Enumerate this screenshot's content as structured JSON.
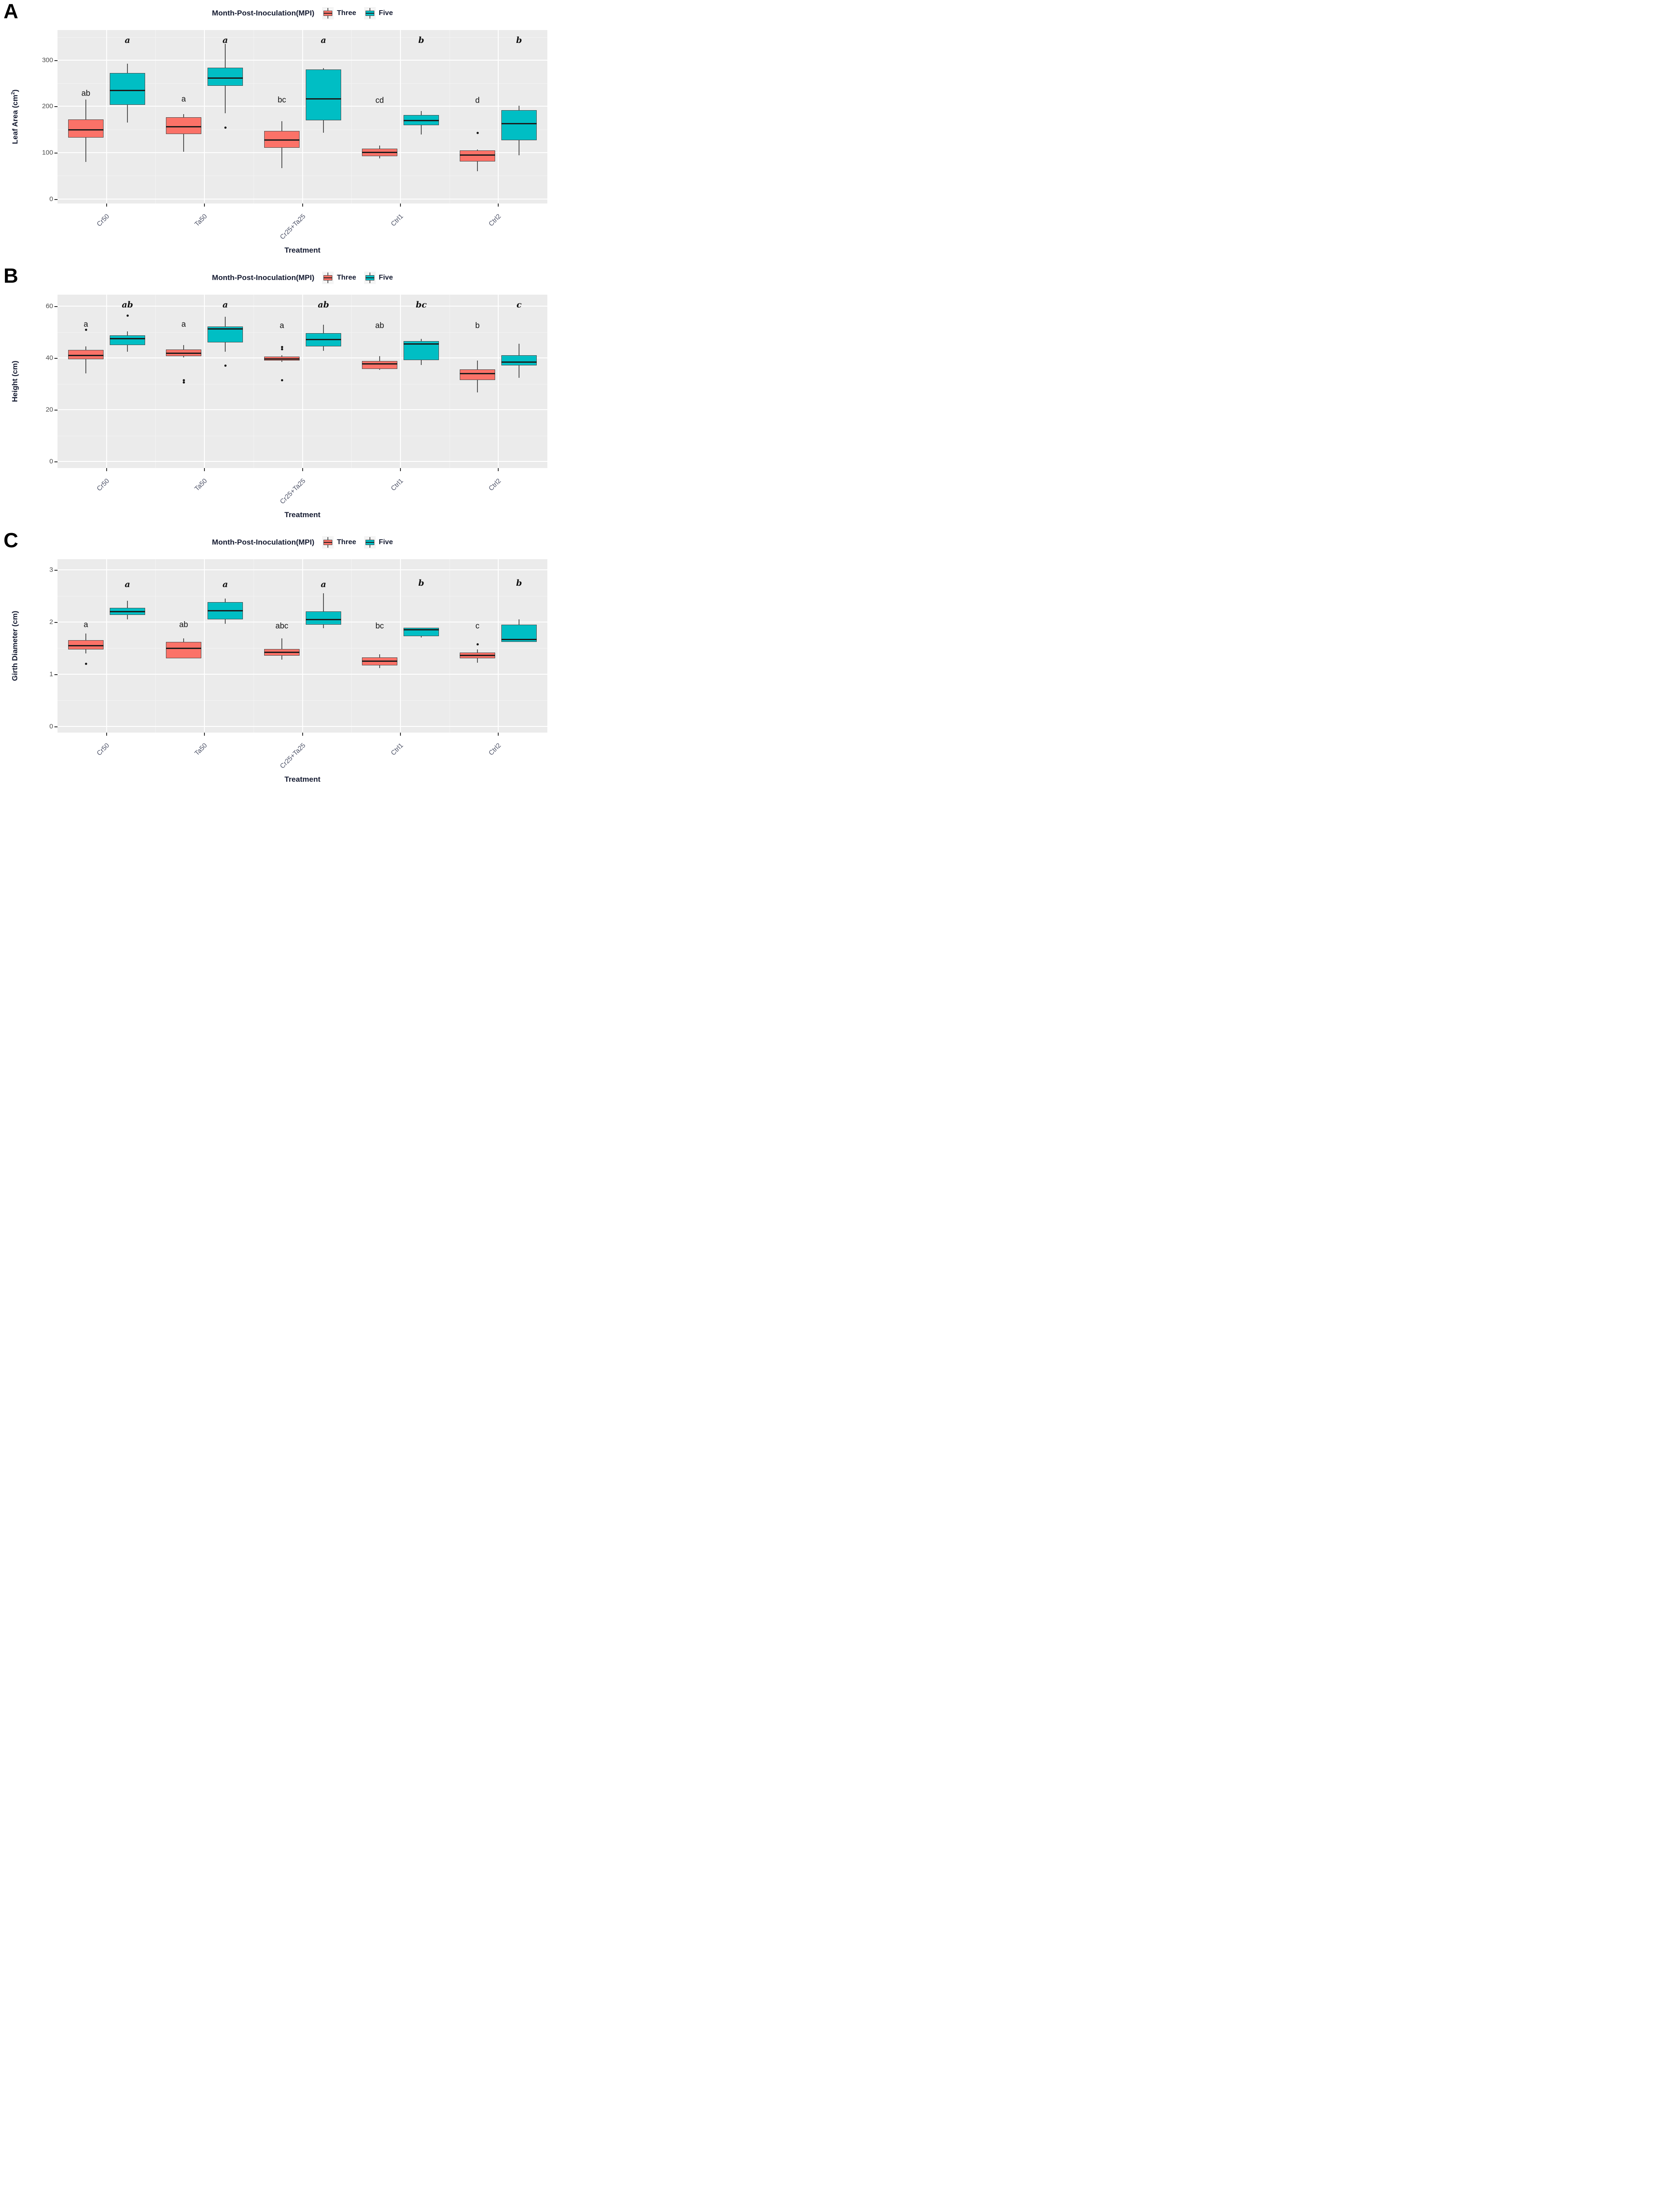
{
  "figure": {
    "panel_letters": [
      "A",
      "B",
      "C"
    ],
    "colors": {
      "three_fill": "#FB7268",
      "five_fill": "#00BEC4",
      "panel_background": "#EBEBEB",
      "grid_major": "#FFFFFF",
      "grid_minor": "#F4F4F4",
      "box_border": "#4A4A4A",
      "median_line": "#1C1C1C",
      "bold_text": "#141A30",
      "tick_label": "#4E4E4E",
      "x_category_label": "#4C5166"
    }
  },
  "chart_data": [
    {
      "type": "boxplot",
      "panel_label": "A",
      "title": "Month-Post-Inoculation(MPI)",
      "xlabel": "Treatment",
      "ylabel_pre": "Leaf Area (cm",
      "ylabel_sup": "2",
      "ylabel_post": ")",
      "categories": [
        "Cr50",
        "Ta50",
        "Cr25+Ta25",
        "Ctrl1",
        "Ctrl2"
      ],
      "ylim": [
        -10,
        365
      ],
      "yticks": [
        0,
        100,
        200,
        300
      ],
      "ytick_labels": [
        "0",
        "100",
        "200",
        "300"
      ],
      "yminor": [
        50,
        150,
        250,
        350
      ],
      "grid": true,
      "legend_position": "top",
      "series": [
        {
          "name": "Three",
          "color": "#FB7268",
          "letter_style": "normal",
          "boxes": [
            {
              "lo": 80,
              "q1": 133,
              "med": 150,
              "q3": 172,
              "hi": 215,
              "outliers": [],
              "letter": "ab",
              "letter_y": 228
            },
            {
              "lo": 102,
              "q1": 140,
              "med": 156,
              "q3": 177,
              "hi": 183,
              "outliers": [],
              "letter": "a",
              "letter_y": 216
            },
            {
              "lo": 67,
              "q1": 111,
              "med": 128,
              "q3": 147,
              "hi": 168,
              "outliers": [],
              "letter": "bc",
              "letter_y": 214
            },
            {
              "lo": 88,
              "q1": 92,
              "med": 101,
              "q3": 109,
              "hi": 115,
              "outliers": [],
              "letter": "cd",
              "letter_y": 213
            },
            {
              "lo": 60,
              "q1": 81,
              "med": 95,
              "q3": 105,
              "hi": 107,
              "outliers": [
                143
              ],
              "letter": "d",
              "letter_y": 213
            }
          ]
        },
        {
          "name": "Five",
          "color": "#00BEC4",
          "letter_style": "italic",
          "boxes": [
            {
              "lo": 165,
              "q1": 203,
              "med": 235,
              "q3": 272,
              "hi": 292,
              "outliers": [],
              "letter": "a",
              "letter_y": 343
            },
            {
              "lo": 185,
              "q1": 244,
              "med": 262,
              "q3": 284,
              "hi": 335,
              "outliers": [
                155
              ],
              "letter": "a",
              "letter_y": 343
            },
            {
              "lo": 143,
              "q1": 170,
              "med": 217,
              "q3": 280,
              "hi": 283,
              "outliers": [],
              "letter": "a",
              "letter_y": 343
            },
            {
              "lo": 139,
              "q1": 159,
              "med": 170,
              "q3": 181,
              "hi": 190,
              "outliers": [],
              "letter": "b",
              "letter_y": 343
            },
            {
              "lo": 94,
              "q1": 127,
              "med": 163,
              "q3": 192,
              "hi": 201,
              "outliers": [],
              "letter": "b",
              "letter_y": 343
            }
          ]
        }
      ]
    },
    {
      "type": "boxplot",
      "panel_label": "B",
      "title": "Month-Post-Inoculation(MPI)",
      "xlabel": "Treatment",
      "ylabel_pre": "Height (cm)",
      "ylabel_sup": "",
      "ylabel_post": "",
      "categories": [
        "Cr50",
        "Ta50",
        "Cr25+Ta25",
        "Ctrl1",
        "Ctrl2"
      ],
      "ylim": [
        -2.5,
        64.5
      ],
      "yticks": [
        0,
        20,
        40,
        60
      ],
      "ytick_labels": [
        "0",
        "20",
        "40",
        "60"
      ],
      "yminor": [
        10,
        30,
        50
      ],
      "grid": true,
      "legend_position": "top",
      "series": [
        {
          "name": "Three",
          "color": "#FB7268",
          "letter_style": "normal",
          "boxes": [
            {
              "lo": 34,
              "q1": 39.5,
              "med": 41,
              "q3": 43.2,
              "hi": 44.5,
              "outliers": [
                51
              ],
              "letter": "a",
              "letter_y": 53
            },
            {
              "lo": 40.2,
              "q1": 40.8,
              "med": 42,
              "q3": 43.3,
              "hi": 45,
              "outliers": [
                31.5,
                30.7
              ],
              "letter": "a",
              "letter_y": 53
            },
            {
              "lo": 38.5,
              "q1": 39,
              "med": 39.7,
              "q3": 40.6,
              "hi": 41,
              "outliers": [
                44.3,
                43.5,
                31.5
              ],
              "letter": "a",
              "letter_y": 52.5
            },
            {
              "lo": 35.4,
              "q1": 35.8,
              "med": 37.8,
              "q3": 38.8,
              "hi": 40.8,
              "outliers": [],
              "letter": "ab",
              "letter_y": 52.5
            },
            {
              "lo": 26.8,
              "q1": 31.5,
              "med": 34,
              "q3": 35.6,
              "hi": 39,
              "outliers": [],
              "letter": "b",
              "letter_y": 52.5
            }
          ]
        },
        {
          "name": "Five",
          "color": "#00BEC4",
          "letter_style": "italic",
          "boxes": [
            {
              "lo": 42.5,
              "q1": 45,
              "med": 47.5,
              "q3": 48.8,
              "hi": 50.3,
              "outliers": [
                56.5
              ],
              "letter": "ab",
              "letter_y": 60.5
            },
            {
              "lo": 42.5,
              "q1": 46,
              "med": 51.3,
              "q3": 52.2,
              "hi": 56,
              "outliers": [
                37.2
              ],
              "letter": "a",
              "letter_y": 60.5
            },
            {
              "lo": 42.8,
              "q1": 44.5,
              "med": 47.3,
              "q3": 49.6,
              "hi": 52.8,
              "outliers": [],
              "letter": "ab",
              "letter_y": 60.5
            },
            {
              "lo": 37.4,
              "q1": 39.2,
              "med": 45.6,
              "q3": 46.6,
              "hi": 47.4,
              "outliers": [],
              "letter": "bc",
              "letter_y": 60.5
            },
            {
              "lo": 32.3,
              "q1": 37.2,
              "med": 38.5,
              "q3": 41,
              "hi": 45.5,
              "outliers": [],
              "letter": "c",
              "letter_y": 60.5
            }
          ]
        }
      ]
    },
    {
      "type": "boxplot",
      "panel_label": "C",
      "title": "Month-Post-Inoculation(MPI)",
      "xlabel": "Treatment",
      "ylabel_pre": "Girth Diameter (cm)",
      "ylabel_sup": "",
      "ylabel_post": "",
      "categories": [
        "Cr50",
        "Ta50",
        "Cr25+Ta25",
        "Ctrl1",
        "Ctrl2"
      ],
      "ylim": [
        -0.12,
        3.2
      ],
      "yticks": [
        0,
        1,
        2,
        3
      ],
      "ytick_labels": [
        "0",
        "1",
        "2",
        "3"
      ],
      "yminor": [
        0.5,
        1.5,
        2.5
      ],
      "grid": true,
      "legend_position": "top",
      "series": [
        {
          "name": "Three",
          "color": "#FB7268",
          "letter_style": "normal",
          "boxes": [
            {
              "lo": 1.4,
              "q1": 1.47,
              "med": 1.55,
              "q3": 1.65,
              "hi": 1.78,
              "outliers": [
                1.2
              ],
              "letter": "a",
              "letter_y": 1.95
            },
            {
              "lo": 1.3,
              "q1": 1.3,
              "med": 1.5,
              "q3": 1.62,
              "hi": 1.68,
              "outliers": [],
              "letter": "ab",
              "letter_y": 1.95
            },
            {
              "lo": 1.28,
              "q1": 1.35,
              "med": 1.42,
              "q3": 1.48,
              "hi": 1.68,
              "outliers": [],
              "letter": "abc",
              "letter_y": 1.92
            },
            {
              "lo": 1.12,
              "q1": 1.17,
              "med": 1.25,
              "q3": 1.32,
              "hi": 1.38,
              "outliers": [],
              "letter": "bc",
              "letter_y": 1.92
            },
            {
              "lo": 1.22,
              "q1": 1.3,
              "med": 1.36,
              "q3": 1.41,
              "hi": 1.47,
              "outliers": [
                1.57
              ],
              "letter": "c",
              "letter_y": 1.92
            }
          ]
        },
        {
          "name": "Five",
          "color": "#00BEC4",
          "letter_style": "italic",
          "boxes": [
            {
              "lo": 2.05,
              "q1": 2.13,
              "med": 2.2,
              "q3": 2.27,
              "hi": 2.4,
              "outliers": [],
              "letter": "a",
              "letter_y": 2.72
            },
            {
              "lo": 1.96,
              "q1": 2.05,
              "med": 2.22,
              "q3": 2.38,
              "hi": 2.45,
              "outliers": [],
              "letter": "a",
              "letter_y": 2.72
            },
            {
              "lo": 1.88,
              "q1": 1.95,
              "med": 2.05,
              "q3": 2.2,
              "hi": 2.55,
              "outliers": [],
              "letter": "a",
              "letter_y": 2.72
            },
            {
              "lo": 1.7,
              "q1": 1.73,
              "med": 1.85,
              "q3": 1.89,
              "hi": 1.89,
              "outliers": [],
              "letter": "b",
              "letter_y": 2.74
            },
            {
              "lo": 1.62,
              "q1": 1.62,
              "med": 1.67,
              "q3": 1.95,
              "hi": 2.05,
              "outliers": [],
              "letter": "b",
              "letter_y": 2.74
            }
          ]
        }
      ]
    }
  ]
}
